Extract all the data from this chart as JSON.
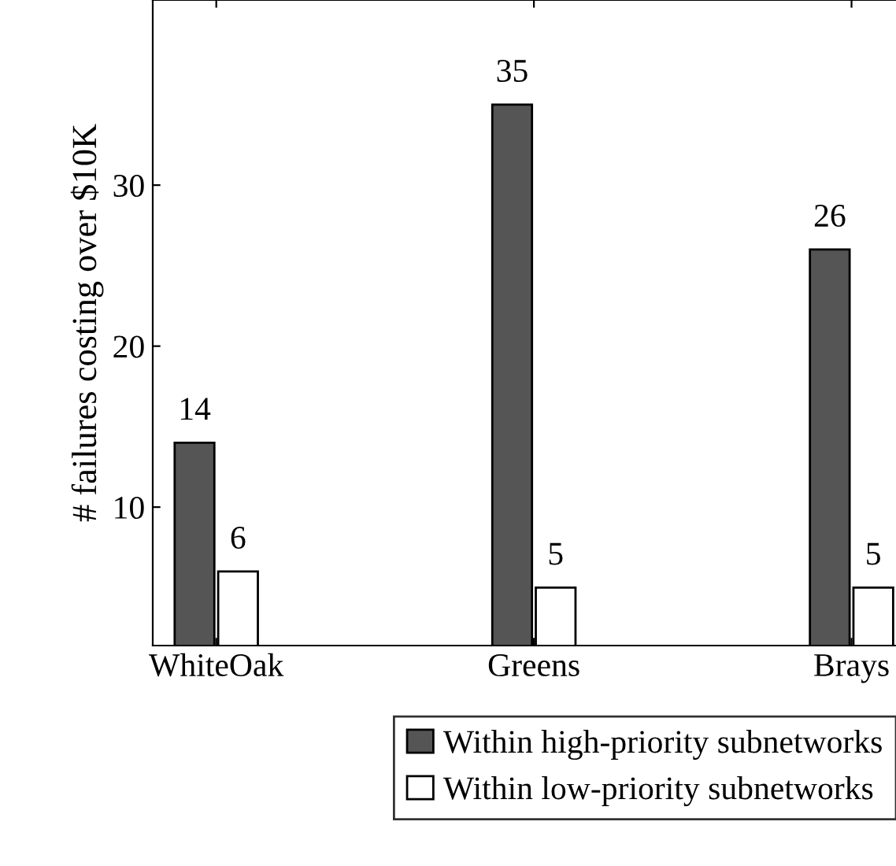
{
  "chart_data": {
    "type": "bar",
    "ylabel": "# failures costing over $10K",
    "categories": [
      "WhiteOak",
      "Greens",
      "Brays"
    ],
    "series": [
      {
        "name": "Within high-priority subnetworks",
        "color": "#555555",
        "values": [
          14,
          35,
          26
        ]
      },
      {
        "name": "Within low-priority subnetworks",
        "color": "#ffffff",
        "values": [
          6,
          5,
          5
        ]
      }
    ],
    "ylim": [
      1.4,
      41.5
    ],
    "yticks": [
      10,
      20,
      30
    ],
    "grid": false,
    "legend": "bottom",
    "data_labels": true
  }
}
